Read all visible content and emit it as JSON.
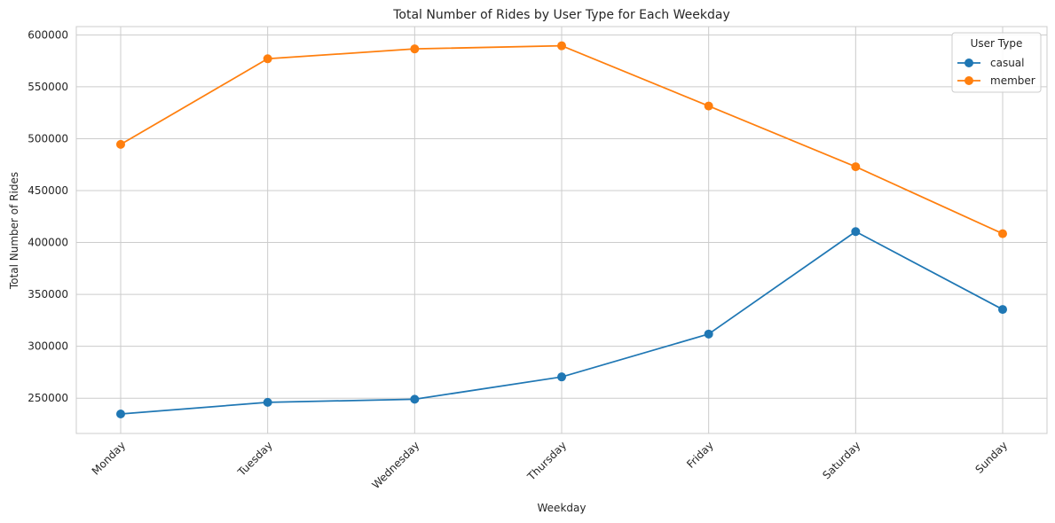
{
  "chart_data": {
    "type": "line",
    "title": "Total Number of Rides by User Type for Each Weekday",
    "xlabel": "Weekday",
    "ylabel": "Total Number of Rides",
    "categories": [
      "Monday",
      "Tuesday",
      "Wednesday",
      "Thursday",
      "Friday",
      "Saturday",
      "Sunday"
    ],
    "series": [
      {
        "name": "casual",
        "color": "#1f77b4",
        "values": [
          234800,
          246000,
          249000,
          270500,
          311800,
          410500,
          335500
        ]
      },
      {
        "name": "member",
        "color": "#ff7f0e",
        "values": [
          494500,
          577000,
          586500,
          589500,
          531500,
          473000,
          408500
        ]
      }
    ],
    "ylim": [
      216000,
      608000
    ],
    "yticks": [
      250000,
      300000,
      350000,
      400000,
      450000,
      500000,
      550000,
      600000
    ],
    "grid": true,
    "legend": {
      "title": "User Type",
      "position": "top-right"
    },
    "marker": "circle"
  }
}
